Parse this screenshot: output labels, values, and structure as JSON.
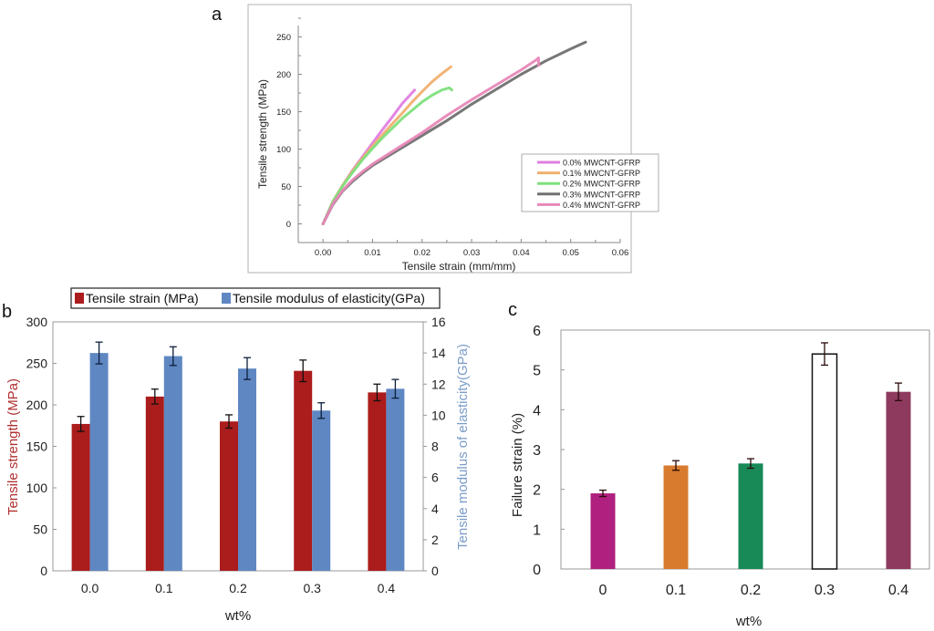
{
  "panel_labels": {
    "a": "a",
    "b": "b",
    "c": "c"
  },
  "chart_data": [
    {
      "id": "a",
      "type": "line",
      "title": "",
      "xlabel": "Tensile strain (mm/mm)",
      "ylabel": "Tensile strength (MPa)",
      "xlim": [
        -0.005,
        0.06
      ],
      "ylim": [
        -25,
        275
      ],
      "xticks": [
        0.0,
        0.01,
        0.02,
        0.03,
        0.04,
        0.05,
        0.06
      ],
      "xtick_labels": [
        "0.00",
        "0.01",
        "0.02",
        "0.03",
        "0.04",
        "0.05",
        "0.06"
      ],
      "yticks": [
        0,
        50,
        100,
        150,
        200,
        250
      ],
      "ytick_labels": [
        "0",
        "50",
        "100",
        "150",
        "200",
        "250"
      ],
      "grid": false,
      "legend_position": "bottom-right",
      "series": [
        {
          "name": "0.0% MWCNT-GFRP",
          "color": "#e07ee0",
          "x": [
            0,
            0.002,
            0.004,
            0.006,
            0.008,
            0.01,
            0.012,
            0.014,
            0.016,
            0.0185
          ],
          "y": [
            0,
            30,
            52,
            72,
            90,
            108,
            126,
            143,
            161,
            179
          ]
        },
        {
          "name": "0.1% MWCNT-GFRP",
          "color": "#f0b070",
          "x": [
            0,
            0.002,
            0.004,
            0.006,
            0.008,
            0.01,
            0.012,
            0.014,
            0.016,
            0.018,
            0.02,
            0.022,
            0.024,
            0.0258
          ],
          "y": [
            0,
            30,
            52,
            71,
            88,
            104,
            119,
            134,
            148,
            163,
            177,
            190,
            201,
            210
          ]
        },
        {
          "name": "0.2% MWCNT-GFRP",
          "color": "#7ee07e",
          "x": [
            0,
            0.002,
            0.004,
            0.006,
            0.008,
            0.01,
            0.012,
            0.014,
            0.016,
            0.018,
            0.02,
            0.022,
            0.024,
            0.0255,
            0.026
          ],
          "y": [
            0,
            30,
            51,
            69,
            86,
            101,
            115,
            128,
            141,
            152,
            163,
            172,
            179,
            182,
            179
          ]
        },
        {
          "name": "0.3% MWCNT-GFRP",
          "color": "#707070",
          "x": [
            0,
            0.002,
            0.004,
            0.006,
            0.008,
            0.01,
            0.015,
            0.02,
            0.025,
            0.03,
            0.035,
            0.04,
            0.045,
            0.05,
            0.053
          ],
          "y": [
            0,
            26,
            44,
            57,
            68,
            78,
            98,
            118,
            138,
            160,
            180,
            200,
            218,
            234,
            243
          ]
        },
        {
          "name": "0.4% MWCNT-GFRP",
          "color": "#e888b8",
          "x": [
            0,
            0.002,
            0.004,
            0.006,
            0.008,
            0.01,
            0.015,
            0.02,
            0.025,
            0.03,
            0.035,
            0.04,
            0.043,
            0.0435,
            0.0435
          ],
          "y": [
            0,
            27,
            45,
            59,
            70,
            80,
            101,
            122,
            145,
            166,
            186,
            206,
            219,
            222,
            212
          ]
        }
      ]
    },
    {
      "id": "b",
      "type": "bar",
      "title": "",
      "xlabel": "wt%",
      "ylabel": "Tensile strength (MPa)",
      "ylabel_right": "Tensile modulus of elasticity(GPa)",
      "categories": [
        "0.0",
        "0.1",
        "0.2",
        "0.3",
        "0.4"
      ],
      "ylim": [
        0,
        300
      ],
      "ylim_right": [
        0,
        16
      ],
      "yticks": [
        "0",
        "50",
        "100",
        "150",
        "200",
        "250",
        "300"
      ],
      "yticks_right": [
        "0",
        "2",
        "4",
        "6",
        "8",
        "10",
        "12",
        "14",
        "16"
      ],
      "grid": false,
      "legend_position": "top",
      "colors": {
        "left_axis_label": "#b03030",
        "right_axis_label": "#7a9cc8"
      },
      "series": [
        {
          "name": "Tensile strain (MPa)",
          "axis": "left",
          "color": "#ab1c1c",
          "values": [
            177,
            210,
            180,
            241,
            215
          ],
          "errors": [
            9,
            9,
            8,
            13,
            10
          ]
        },
        {
          "name": "Tensile modulus of elasticity(GPa)",
          "axis": "right",
          "color": "#5f87c2",
          "values": [
            14.0,
            13.8,
            13.0,
            10.3,
            11.7
          ],
          "errors": [
            0.7,
            0.6,
            0.7,
            0.5,
            0.6
          ]
        }
      ]
    },
    {
      "id": "c",
      "type": "bar",
      "title": "",
      "xlabel": "wt%",
      "ylabel": "Failure strain (%)",
      "categories": [
        "0",
        "0.1",
        "0.2",
        "0.3",
        "0.4"
      ],
      "ylim": [
        0,
        6
      ],
      "yticks": [
        "0",
        "1",
        "2",
        "3",
        "4",
        "5",
        "6"
      ],
      "grid": false,
      "legend_position": "none",
      "series": [
        {
          "name": "Failure strain",
          "values": [
            1.9,
            2.6,
            2.65,
            5.4,
            4.45
          ],
          "errors": [
            0.08,
            0.12,
            0.12,
            0.28,
            0.22
          ],
          "colors": [
            "#b0207e",
            "#d87b2e",
            "#178a58",
            "#ffffff",
            "#8e3a5e"
          ]
        }
      ]
    }
  ]
}
